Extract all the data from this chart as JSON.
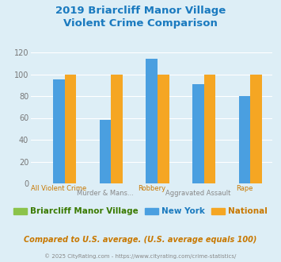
{
  "title": "2019 Briarcliff Manor Village\nViolent Crime Comparison",
  "title_color": "#1a7abf",
  "series": {
    "Briarcliff Manor Village": {
      "values": [
        0,
        0,
        0,
        0,
        0
      ],
      "color": "#8bc34a"
    },
    "New York": {
      "values": [
        95,
        58,
        114,
        91,
        80
      ],
      "color": "#4a9fe0"
    },
    "National": {
      "values": [
        100,
        100,
        100,
        100,
        100
      ],
      "color": "#f5a623"
    }
  },
  "cat_top": [
    "",
    "Murder & Mans...",
    "",
    "Aggravated Assault",
    ""
  ],
  "cat_bot": [
    "All Violent Crime",
    "",
    "Robbery",
    "",
    "Rape"
  ],
  "ylim": [
    0,
    120
  ],
  "yticks": [
    0,
    20,
    40,
    60,
    80,
    100,
    120
  ],
  "background_color": "#ddeef6",
  "plot_bg_color": "#ddeef6",
  "grid_color": "#ffffff",
  "footnote": "Compared to U.S. average. (U.S. average equals 100)",
  "footnote_color": "#c87800",
  "copyright": "© 2025 CityRating.com - https://www.cityrating.com/crime-statistics/",
  "copyright_color": "#888888",
  "legend_labels": [
    "Briarcliff Manor Village",
    "New York",
    "National"
  ],
  "legend_colors": [
    "#8bc34a",
    "#4a9fe0",
    "#f5a623"
  ],
  "legend_text_colors": [
    "#3a7a00",
    "#1a7abf",
    "#c87800"
  ]
}
